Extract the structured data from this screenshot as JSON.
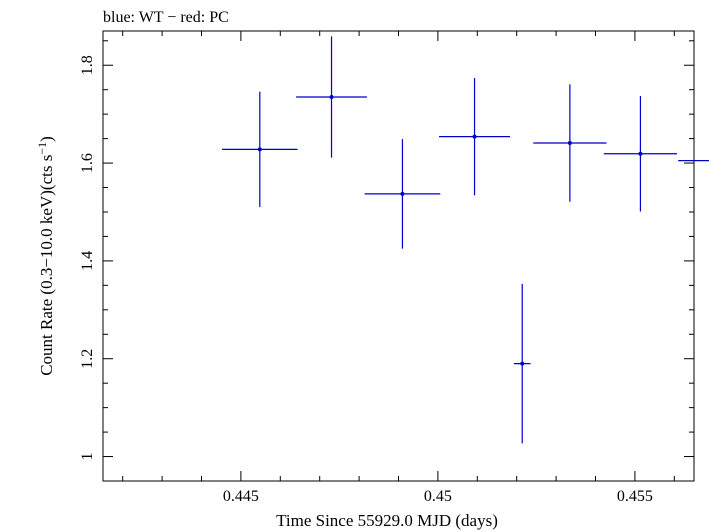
{
  "chart_data": {
    "type": "scatter",
    "title": "blue: WT − red: PC",
    "xlabel": "Time Since 55929.0 MJD (days)",
    "ylabel": "Count Rate (0.3−10.0 keV)(cts s",
    "ylabel_superscript": "−1",
    "ylabel_suffix": ")",
    "xlim": [
      0.4415,
      0.4565
    ],
    "ylim": [
      0.95,
      1.87
    ],
    "x_ticks": [
      {
        "value": 0.445,
        "label": "0.445"
      },
      {
        "value": 0.45,
        "label": "0.45"
      },
      {
        "value": 0.455,
        "label": "0.455"
      }
    ],
    "y_ticks": [
      {
        "value": 1.0,
        "label": "1"
      },
      {
        "value": 1.2,
        "label": "1.2"
      },
      {
        "value": 1.4,
        "label": "1.4"
      },
      {
        "value": 1.6,
        "label": "1.6"
      },
      {
        "value": 1.8,
        "label": "1.8"
      }
    ],
    "series": [
      {
        "color": "#0000cc",
        "points": [
          {
            "x": 0.44548,
            "xerr": 0.00096,
            "y": 1.628,
            "yerr": 0.118
          },
          {
            "x": 0.4473,
            "xerr": 0.0009,
            "y": 1.735,
            "yerr": 0.124
          },
          {
            "x": 0.4491,
            "xerr": 0.00096,
            "y": 1.537,
            "yerr": 0.112
          },
          {
            "x": 0.45093,
            "xerr": 0.0009,
            "y": 1.654,
            "yerr": 0.12
          },
          {
            "x": 0.45214,
            "xerr": 0.00021,
            "y": 1.19,
            "yerr": 0.163
          },
          {
            "x": 0.45335,
            "xerr": 0.00093,
            "y": 1.641,
            "yerr": 0.12
          },
          {
            "x": 0.45514,
            "xerr": 0.00093,
            "y": 1.619,
            "yerr": 0.118
          },
          {
            "x": 0.45727,
            "xerr": 0.00117,
            "y": 1.605,
            "yerr": 0.104
          }
        ]
      }
    ]
  }
}
